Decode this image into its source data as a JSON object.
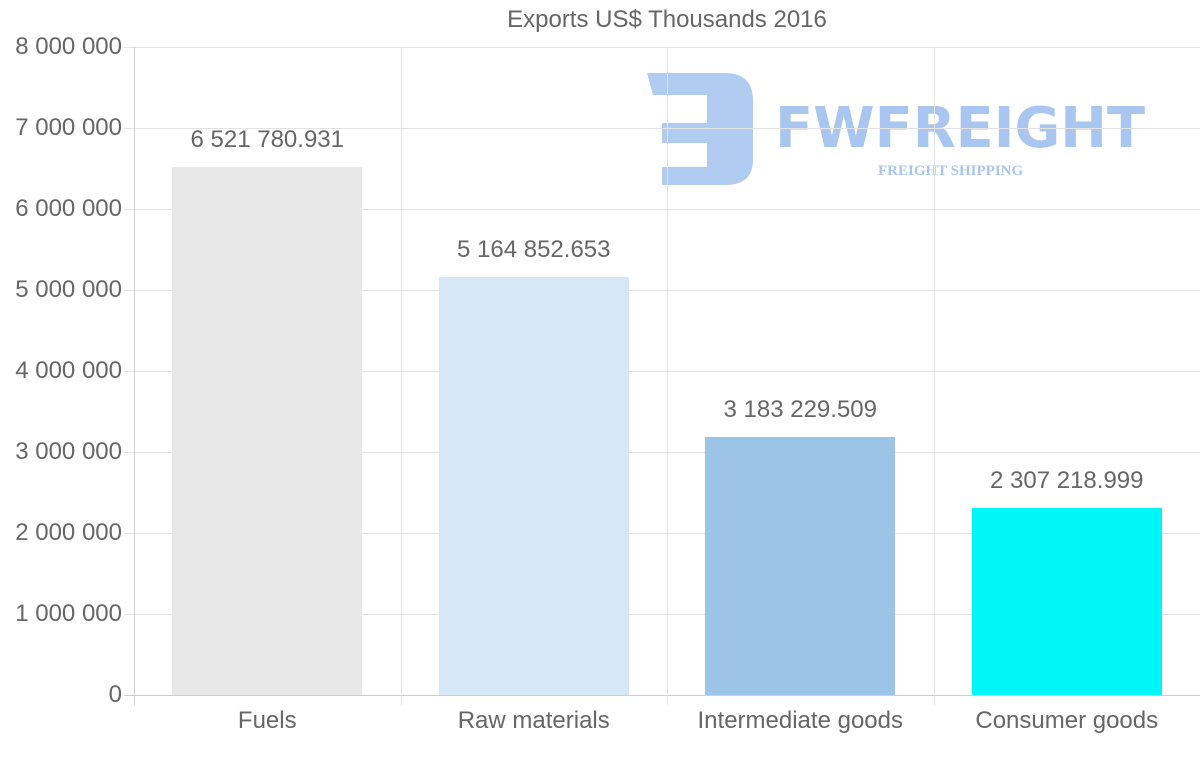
{
  "chart_data": {
    "type": "bar",
    "title": "Exports US$ Thousands 2016",
    "xlabel": "",
    "ylabel": "",
    "ylim": [
      0,
      8000000
    ],
    "grid": true,
    "legend": null,
    "categories": [
      "Fuels",
      "Raw materials",
      "Intermediate goods",
      "Consumer goods"
    ],
    "values": [
      6521780.931,
      5164852.653,
      3183229.509,
      2307218.999
    ],
    "value_labels": [
      "6 521 780.931",
      "5 164 852.653",
      "3 183 229.509",
      "2 307 218.999"
    ],
    "colors": [
      "#e8e8e8",
      "#d6e8f8",
      "#9cc4e6",
      "#00f7f7"
    ],
    "yticks": [
      {
        "value": 0,
        "label": "0"
      },
      {
        "value": 1000000,
        "label": "1 000 000"
      },
      {
        "value": 2000000,
        "label": "2 000 000"
      },
      {
        "value": 3000000,
        "label": "3 000 000"
      },
      {
        "value": 4000000,
        "label": "4 000 000"
      },
      {
        "value": 5000000,
        "label": "5 000 000"
      },
      {
        "value": 6000000,
        "label": "6 000 000"
      },
      {
        "value": 7000000,
        "label": "7 000 000"
      },
      {
        "value": 8000000,
        "label": "8 000 000"
      }
    ]
  },
  "watermark": {
    "brand": "FWFREIGHT",
    "tagline": "FREIGHT SHIPPING",
    "color": "#a9c6f0"
  }
}
